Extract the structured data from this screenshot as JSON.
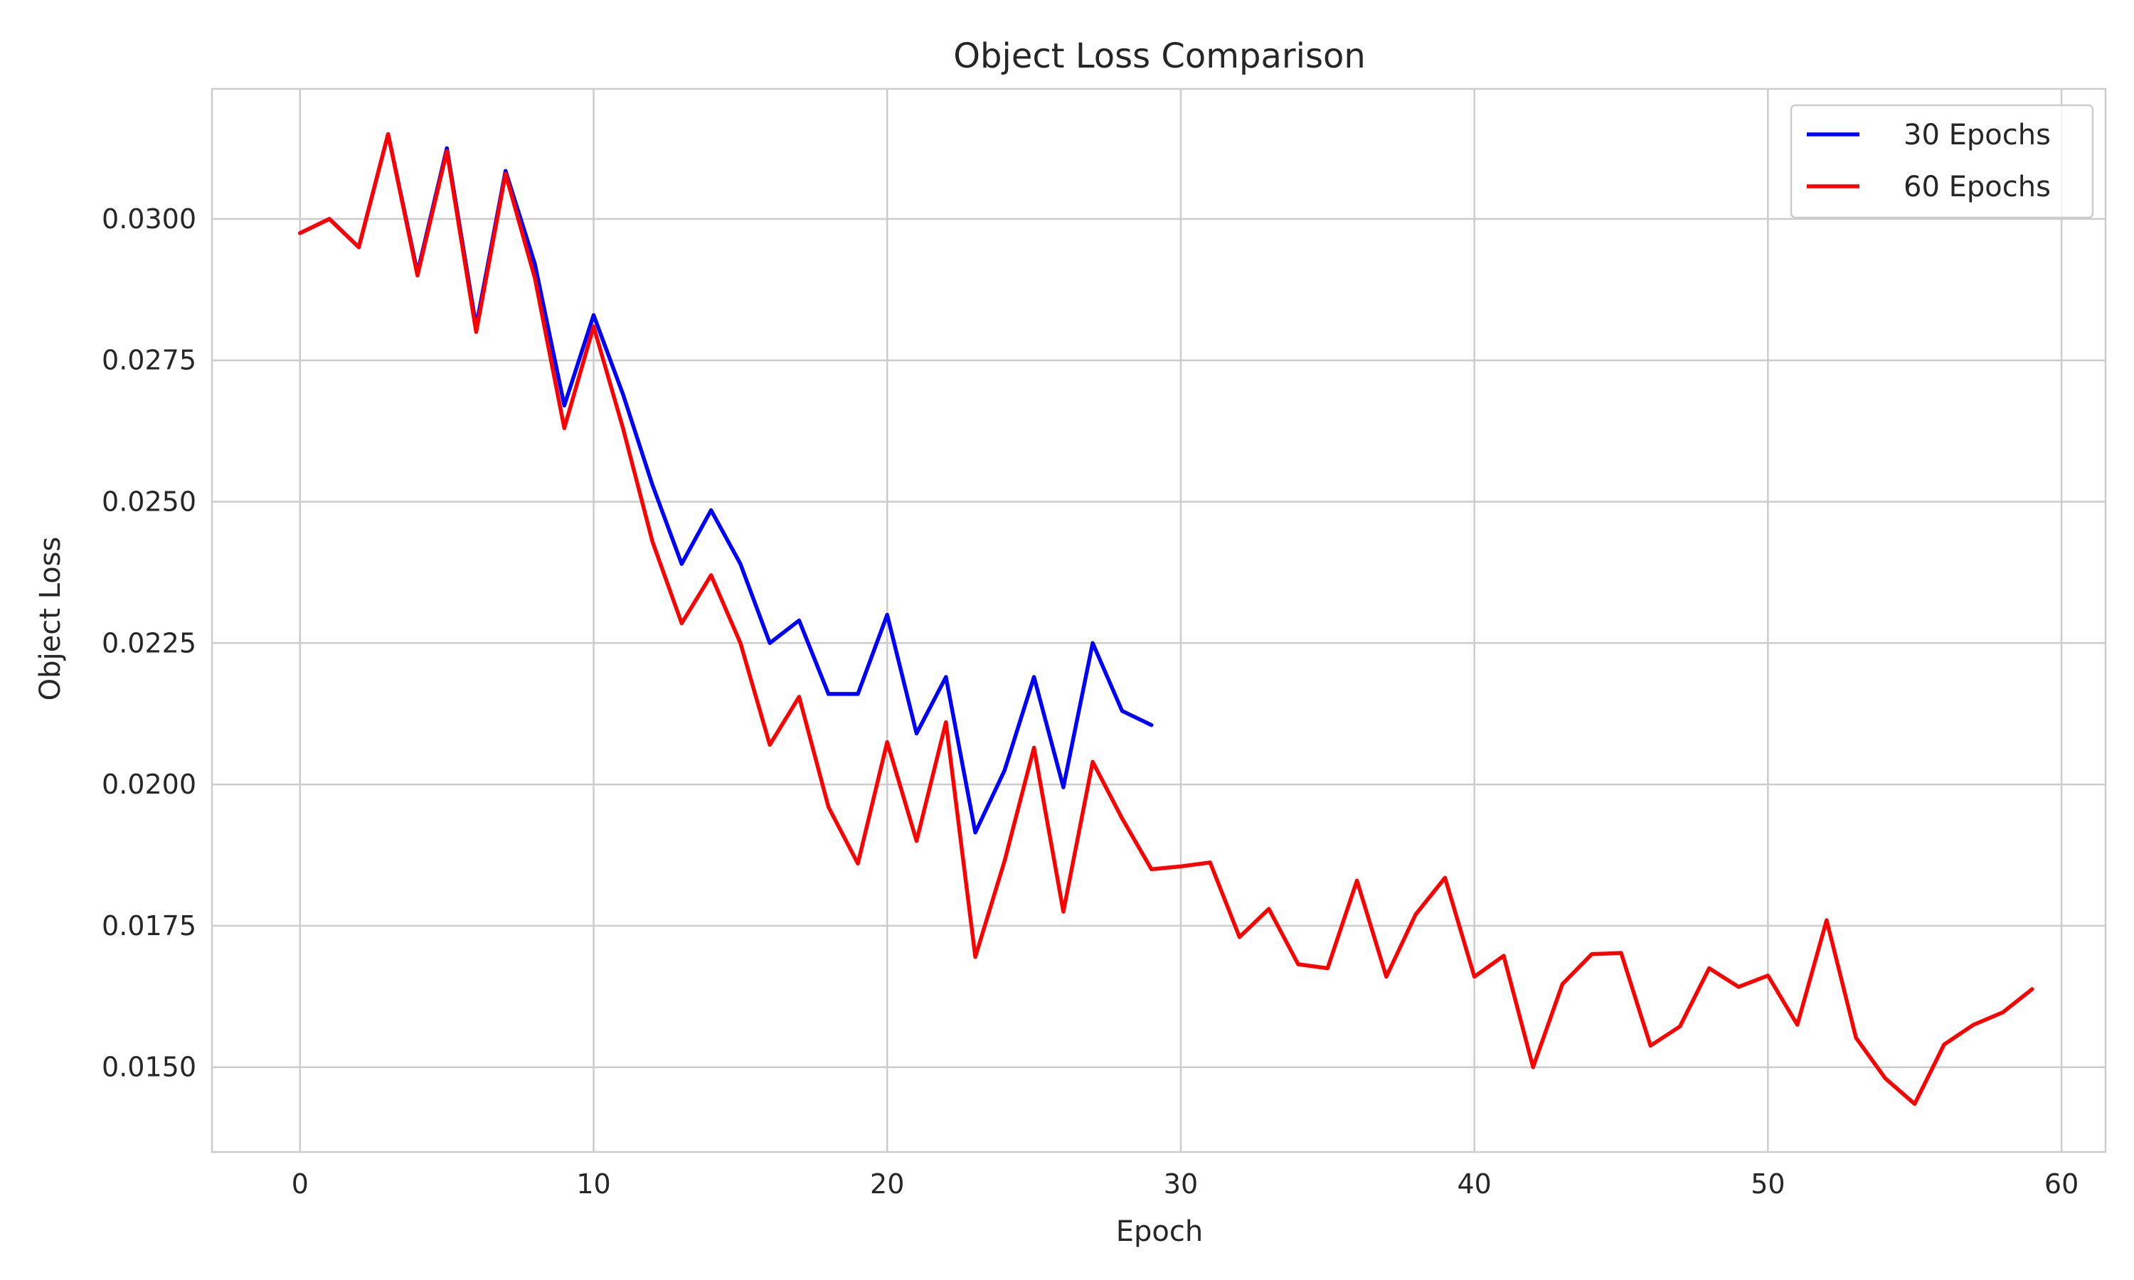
{
  "chart_data": {
    "type": "line",
    "title": "Object Loss Comparison",
    "xlabel": "Epoch",
    "ylabel": "Object Loss",
    "xlim": [
      -3,
      61.5
    ],
    "ylim": [
      0.0135,
      0.0323
    ],
    "xticks": [
      "0",
      "10",
      "20",
      "30",
      "40",
      "50",
      "60"
    ],
    "yticks": [
      "0.0150",
      "0.0175",
      "0.0200",
      "0.0225",
      "0.0250",
      "0.0275",
      "0.0300"
    ],
    "grid": true,
    "legend_position": "top-right",
    "series": [
      {
        "name": "30 Epochs",
        "color": "#0000ff",
        "x": [
          0,
          1,
          2,
          3,
          4,
          5,
          6,
          7,
          8,
          9,
          10,
          11,
          12,
          13,
          14,
          15,
          16,
          17,
          18,
          19,
          20,
          21,
          22,
          23,
          24,
          25,
          26,
          27,
          28,
          29
        ],
        "values": [
          0.02975,
          0.03,
          0.0295,
          0.0315,
          0.02905,
          0.03125,
          0.0281,
          0.03085,
          0.0292,
          0.0267,
          0.0283,
          0.0269,
          0.0253,
          0.0239,
          0.02485,
          0.0239,
          0.0225,
          0.0229,
          0.0216,
          0.0216,
          0.023,
          0.0209,
          0.0219,
          0.01915,
          0.02025,
          0.0219,
          0.01995,
          0.0225,
          0.0213,
          0.02105
        ]
      },
      {
        "name": "60 Epochs",
        "color": "#ff0000",
        "x": [
          0,
          1,
          2,
          3,
          4,
          5,
          6,
          7,
          8,
          9,
          10,
          11,
          12,
          13,
          14,
          15,
          16,
          17,
          18,
          19,
          20,
          21,
          22,
          23,
          24,
          25,
          26,
          27,
          28,
          29,
          30,
          31,
          32,
          33,
          34,
          35,
          36,
          37,
          38,
          39,
          40,
          41,
          42,
          43,
          44,
          45,
          46,
          47,
          48,
          49,
          50,
          51,
          52,
          53,
          54,
          55,
          56,
          57,
          58,
          59
        ],
        "values": [
          0.02975,
          0.03,
          0.0295,
          0.0315,
          0.029,
          0.0312,
          0.028,
          0.0308,
          0.02895,
          0.0263,
          0.0281,
          0.0263,
          0.0243,
          0.02285,
          0.0237,
          0.0225,
          0.0207,
          0.02155,
          0.0196,
          0.0186,
          0.02075,
          0.019,
          0.0211,
          0.01695,
          0.01865,
          0.02065,
          0.01775,
          0.0204,
          0.0194,
          0.0185,
          0.01855,
          0.01862,
          0.0173,
          0.0178,
          0.01682,
          0.01675,
          0.0183,
          0.0166,
          0.0177,
          0.01835,
          0.0166,
          0.01697,
          0.015,
          0.01647,
          0.017,
          0.01702,
          0.01538,
          0.01572,
          0.01675,
          0.01642,
          0.01662,
          0.01575,
          0.0176,
          0.01552,
          0.0148,
          0.01435,
          0.0154,
          0.01575,
          0.01597,
          0.01638
        ]
      }
    ]
  }
}
